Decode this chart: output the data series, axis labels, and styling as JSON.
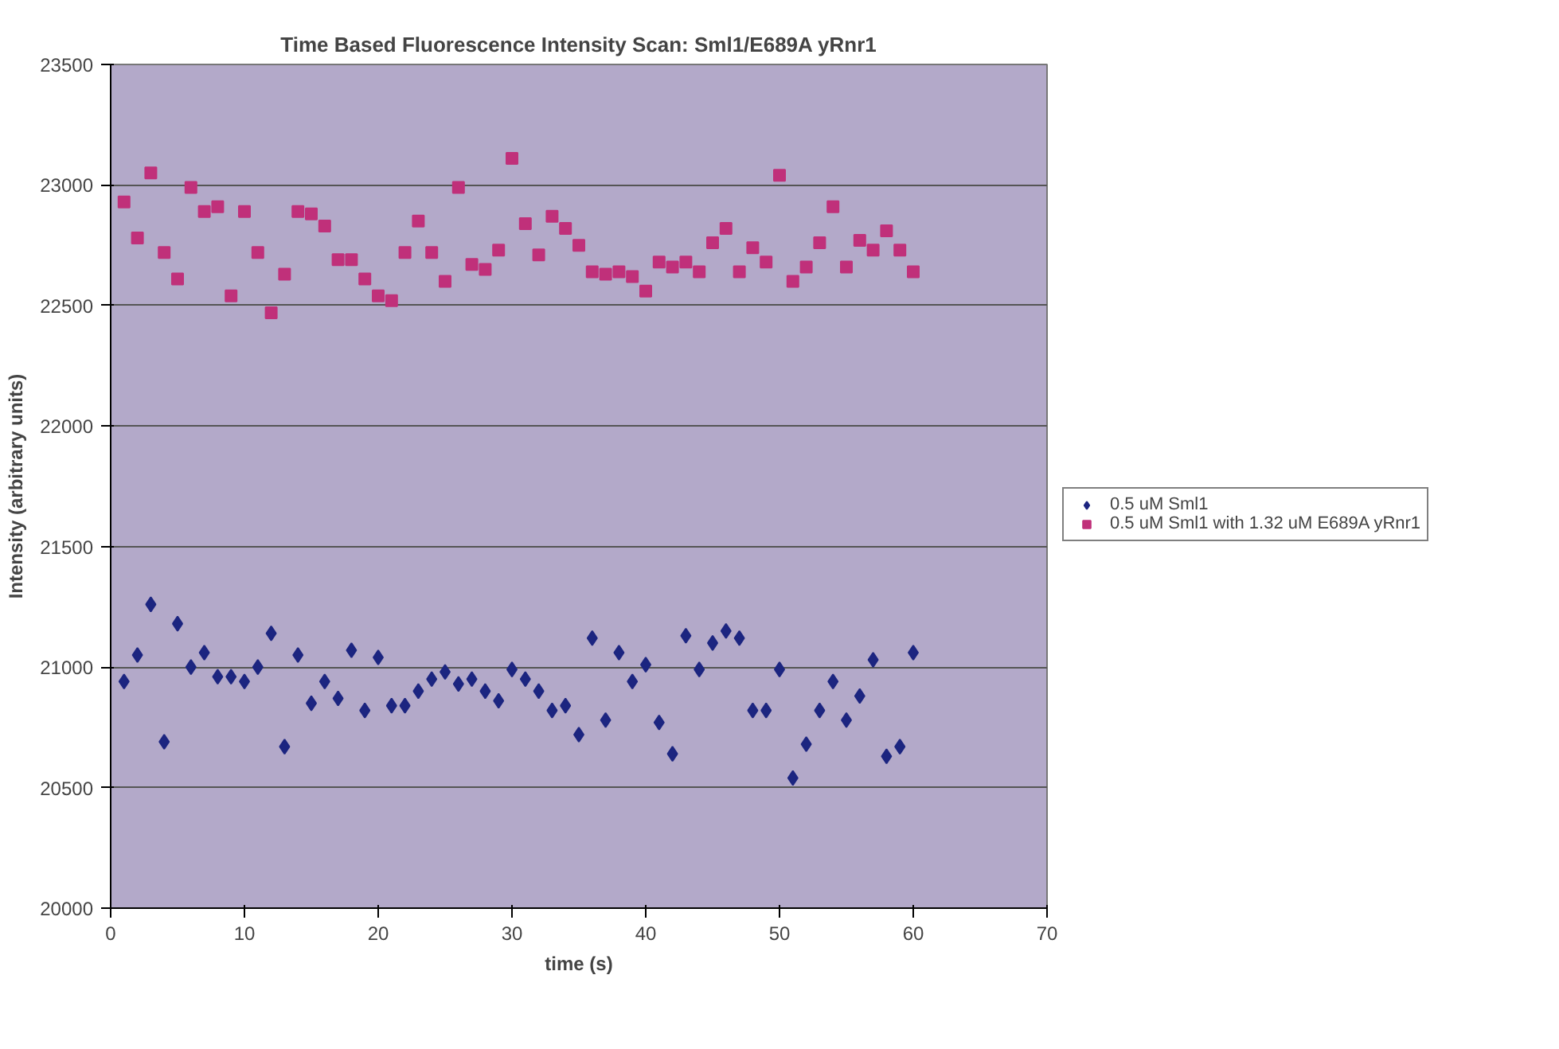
{
  "chart_data": {
    "type": "scatter",
    "title": "Time Based Fluorescence Intensity Scan: Sml1/E689A yRnr1",
    "xlabel": "time (s)",
    "ylabel": "Intensity (arbitrary units)",
    "x": [
      1,
      2,
      3,
      4,
      5,
      6,
      7,
      8,
      9,
      10,
      11,
      12,
      13,
      14,
      15,
      16,
      17,
      18,
      19,
      20,
      21,
      22,
      23,
      24,
      25,
      26,
      27,
      28,
      29,
      30,
      31,
      32,
      33,
      34,
      35,
      36,
      37,
      38,
      39,
      40,
      41,
      42,
      43,
      44,
      45,
      46,
      47,
      48,
      49,
      50,
      51,
      52,
      53,
      54,
      55,
      56,
      57,
      58,
      59,
      60
    ],
    "series": [
      {
        "name": "0.5 uM Sml1",
        "color": "#1c2580",
        "marker": "diamond",
        "values": [
          20940,
          21050,
          21260,
          20690,
          21180,
          21000,
          21060,
          20960,
          20960,
          20940,
          21000,
          21140,
          20670,
          21050,
          20850,
          20940,
          20870,
          21070,
          20820,
          21040,
          20840,
          20840,
          20900,
          20950,
          20980,
          20930,
          20950,
          20900,
          20860,
          20990,
          20950,
          20900,
          20820,
          20840,
          20720,
          21120,
          20780,
          21060,
          20940,
          21010,
          20770,
          20640,
          21130,
          20990,
          21100,
          21150,
          21120,
          20820,
          20820,
          20990,
          20540,
          20680,
          20820,
          20940,
          20780,
          20880,
          21030,
          20630,
          20670,
          21060
        ]
      },
      {
        "name": "0.5 uM Sml1 with 1.32 uM E689A yRnr1",
        "color": "#c0307a",
        "marker": "square",
        "values": [
          22930,
          22780,
          23050,
          22720,
          22610,
          22990,
          22890,
          22910,
          22540,
          22890,
          22720,
          22470,
          22630,
          22890,
          22880,
          22830,
          22690,
          22690,
          22610,
          22540,
          22520,
          22720,
          22850,
          22720,
          22600,
          22990,
          22670,
          22650,
          22730,
          23110,
          22840,
          22710,
          22870,
          22820,
          22750,
          22640,
          22630,
          22640,
          22620,
          22560,
          22680,
          22660,
          22680,
          22640,
          22760,
          22820,
          22640,
          22740,
          22680,
          23040,
          22600,
          22660,
          22760,
          22910,
          22660,
          22770,
          22730,
          22810,
          22730,
          22640
        ]
      }
    ],
    "xlim": [
      0,
      70
    ],
    "xticks": [
      0,
      10,
      20,
      30,
      40,
      50,
      60,
      70
    ],
    "ylim": [
      20000,
      23500
    ],
    "yticks": [
      20000,
      20500,
      21000,
      21500,
      22000,
      22500,
      23000,
      23500
    ],
    "grid": "y",
    "legend": "right"
  }
}
